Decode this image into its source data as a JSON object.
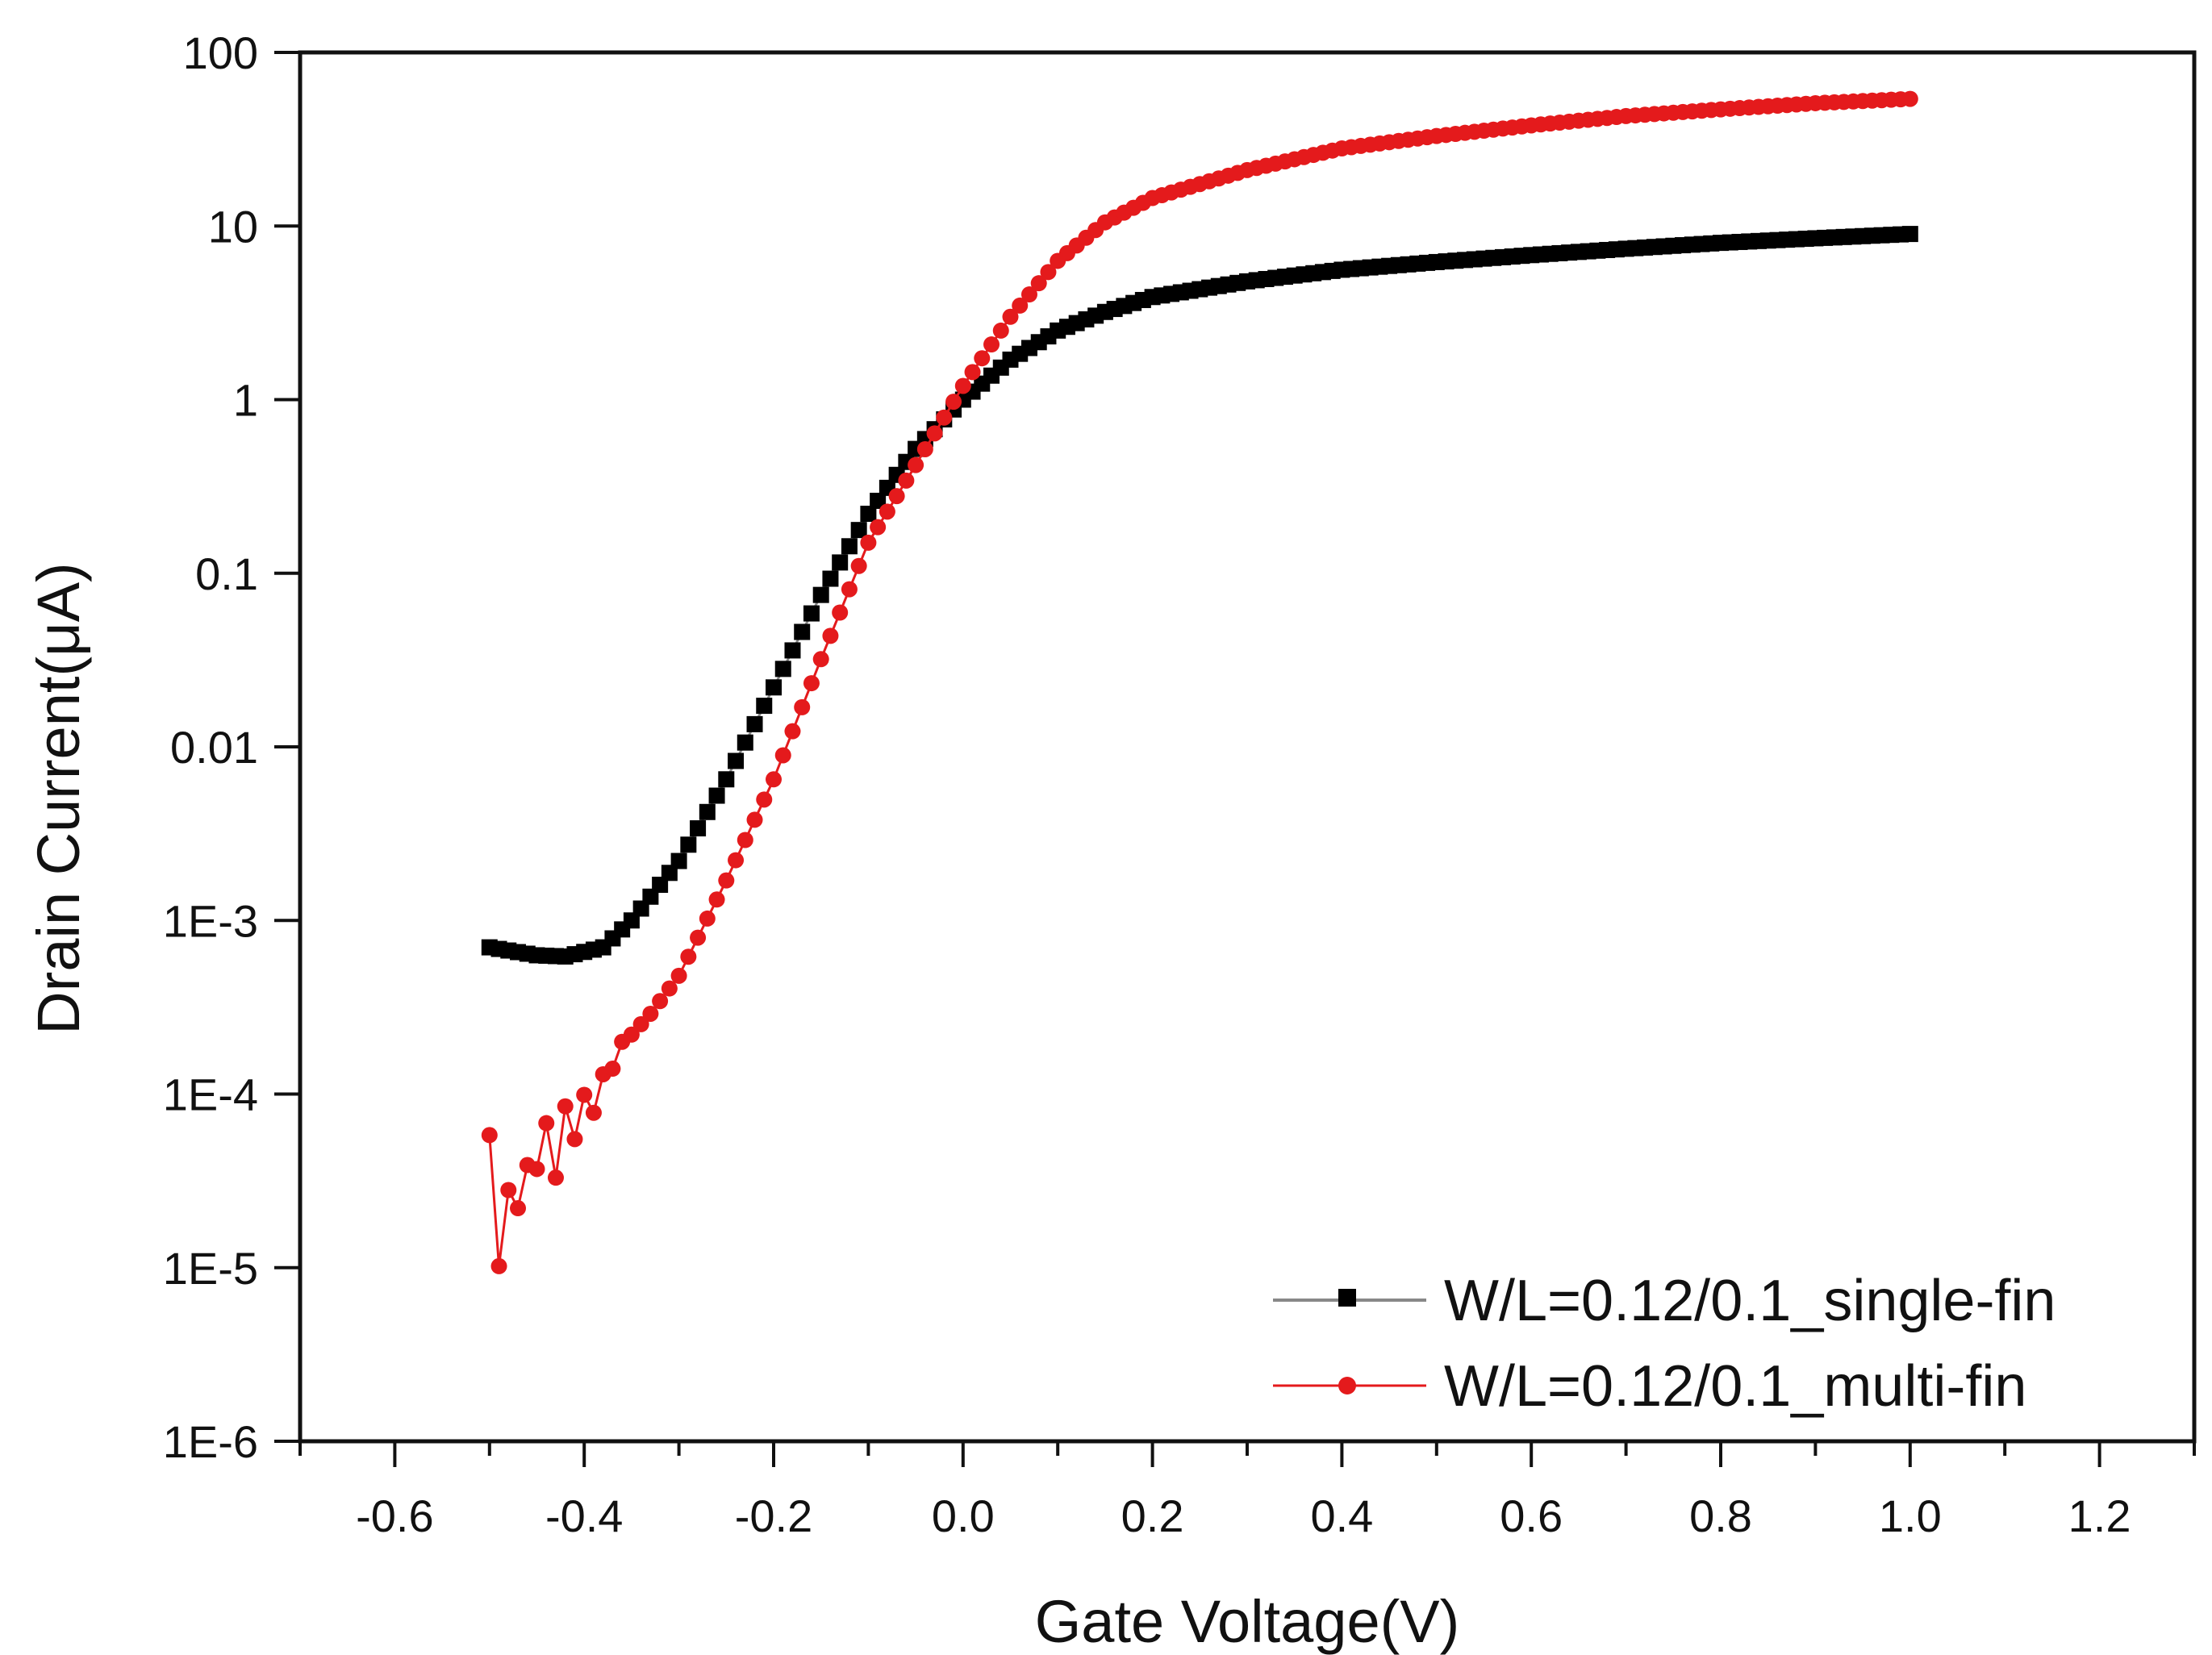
{
  "chart_data": {
    "type": "scatter",
    "title": "",
    "xlabel": "Gate Voltage(V)",
    "ylabel": "Drain Current(μA)",
    "xlim": [
      -0.7,
      1.3
    ],
    "ylim": [
      1e-06,
      100
    ],
    "yscale": "log",
    "grid": false,
    "legend_position": "bottom-right",
    "x_ticks": [
      -0.6,
      -0.4,
      -0.2,
      0.0,
      0.2,
      0.4,
      0.6,
      0.8,
      1.0,
      1.2
    ],
    "x_tick_labels": [
      "-0.6",
      "-0.4",
      "-0.2",
      "0.0",
      "0.2",
      "0.4",
      "0.6",
      "0.8",
      "1.0",
      "1.2"
    ],
    "y_ticks": [
      1e-06,
      1e-05,
      0.0001,
      0.001,
      0.01,
      0.1,
      1,
      10,
      100
    ],
    "y_tick_labels": [
      "1E-6",
      "1E-5",
      "1E-4",
      "1E-3",
      "0.01",
      "0.1",
      "1",
      "10",
      "100"
    ],
    "series": [
      {
        "name": "W/L=0.12/0.1_single-fin",
        "color": "#000000",
        "line_color": "#888888",
        "marker": "square",
        "points": [
          [
            -0.5,
            0.0007
          ],
          [
            -0.45,
            0.00063
          ],
          [
            -0.42,
            0.00062
          ],
          [
            -0.38,
            0.0007
          ],
          [
            -0.35,
            0.001
          ],
          [
            -0.3,
            0.0022
          ],
          [
            -0.25,
            0.0065
          ],
          [
            -0.2,
            0.022
          ],
          [
            -0.15,
            0.075
          ],
          [
            -0.1,
            0.22
          ],
          [
            -0.05,
            0.52
          ],
          [
            0.0,
            1.0
          ],
          [
            0.05,
            1.7
          ],
          [
            0.1,
            2.5
          ],
          [
            0.15,
            3.2
          ],
          [
            0.2,
            3.9
          ],
          [
            0.3,
            4.8
          ],
          [
            0.4,
            5.6
          ],
          [
            0.5,
            6.2
          ],
          [
            0.6,
            6.8
          ],
          [
            0.7,
            7.4
          ],
          [
            0.8,
            8.0
          ],
          [
            0.9,
            8.5
          ],
          [
            1.0,
            9.0
          ]
        ]
      },
      {
        "name": "W/L=0.12/0.1_multi-fin",
        "color": "#e41a1c",
        "line_color": "#e41a1c",
        "marker": "circle",
        "points": [
          [
            -0.5,
            5.8e-05
          ],
          [
            -0.49,
            1.02e-05
          ],
          [
            -0.48,
            2.8e-05
          ],
          [
            -0.47,
            2.2e-05
          ],
          [
            -0.46,
            3.9e-05
          ],
          [
            -0.45,
            3.7e-05
          ],
          [
            -0.44,
            6.8e-05
          ],
          [
            -0.43,
            3.3e-05
          ],
          [
            -0.42,
            8.5e-05
          ],
          [
            -0.41,
            5.5e-05
          ],
          [
            -0.4,
            9.9e-05
          ],
          [
            -0.39,
            7.8e-05
          ],
          [
            -0.38,
            0.00013
          ],
          [
            -0.37,
            0.00014
          ],
          [
            -0.36,
            0.0002
          ],
          [
            -0.35,
            0.00022
          ],
          [
            -0.33,
            0.00029
          ],
          [
            -0.3,
            0.00048
          ],
          [
            -0.25,
            0.0017
          ],
          [
            -0.2,
            0.0065
          ],
          [
            -0.15,
            0.032
          ],
          [
            -0.1,
            0.15
          ],
          [
            -0.05,
            0.42
          ],
          [
            0.0,
            1.2
          ],
          [
            0.05,
            3.0
          ],
          [
            0.1,
            6.3
          ],
          [
            0.15,
            10.5
          ],
          [
            0.2,
            14.5
          ],
          [
            0.3,
            21.0
          ],
          [
            0.4,
            28.0
          ],
          [
            0.5,
            33.0
          ],
          [
            0.6,
            38.0
          ],
          [
            0.7,
            43.0
          ],
          [
            0.8,
            47.0
          ],
          [
            0.9,
            51.0
          ],
          [
            1.0,
            54.0
          ]
        ]
      }
    ]
  }
}
